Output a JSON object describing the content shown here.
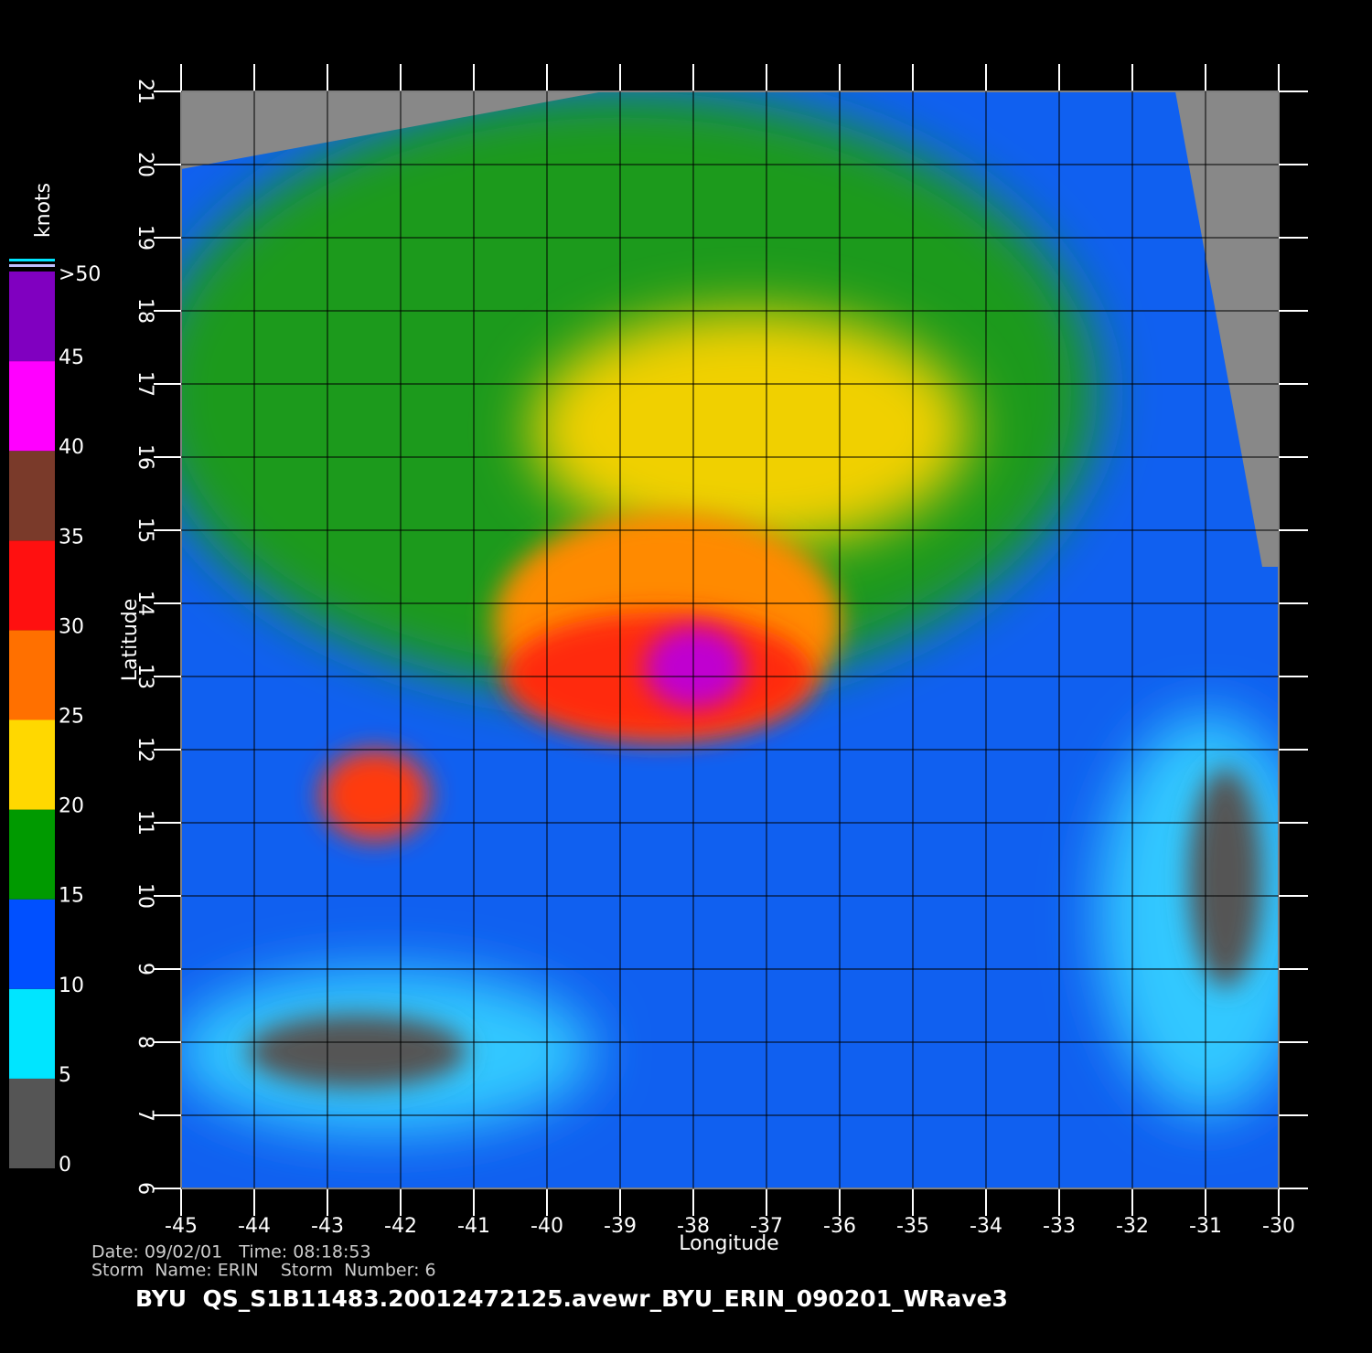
{
  "map": {
    "xlabel": "Longitude",
    "ylabel": "Latitude",
    "xlim": [
      -45,
      -30
    ],
    "ylim": [
      6,
      21
    ],
    "xticks": [
      -45,
      -44,
      -43,
      -42,
      -41,
      -40,
      -39,
      -38,
      -37,
      -36,
      -35,
      -34,
      -33,
      -32,
      -31,
      -30
    ],
    "yticks": [
      6,
      7,
      8,
      9,
      10,
      11,
      12,
      13,
      14,
      15,
      16,
      17,
      18,
      19,
      20,
      21
    ]
  },
  "colorbar": {
    "label": "knots",
    "lim": [
      0,
      50
    ],
    "ticks": [
      0,
      5,
      10,
      15,
      20,
      25,
      30,
      35,
      40,
      45,
      {
        "value": 50,
        "label": ">50"
      }
    ],
    "colors": [
      "#555555",
      "#00e5ff",
      "#0050ff",
      "#009a00",
      "#ffd800",
      "#ff7000",
      "#ff1010",
      "#7a3a2a",
      "#ff00ff",
      "#8000c0"
    ]
  },
  "footer": {
    "line1": "Date: 09/02/01   Time: 08:18:53",
    "line2": "Storm  Name: ERIN    Storm  Number: 6",
    "title": "BYU  QS_S1B11483.20012472125.avewr_BYU_ERIN_090201_WRave3"
  }
}
